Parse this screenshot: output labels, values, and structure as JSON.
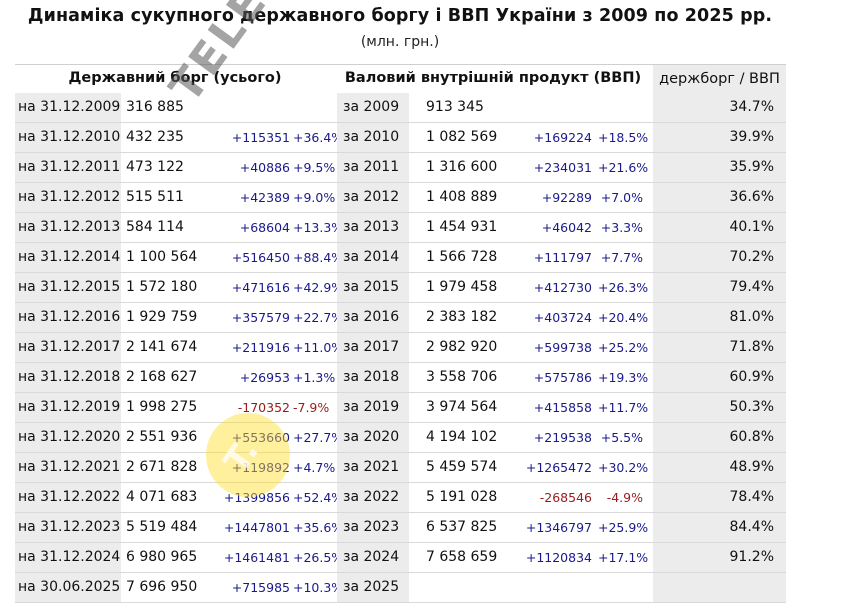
{
  "title": "Динаміка сукупного державного боргу і ВВП України з 2009 по 2025 рр.",
  "subtitle": "(млн. грн.)",
  "headers": {
    "debt": "Державний борг (усього)",
    "gdp": "Валовий внутрішній продукт (ВВП)",
    "ratio": "держборг / ВВП"
  },
  "watermark": {
    "text": "TELEGRAF",
    "logo": "T."
  },
  "rows": [
    {
      "date": "на 31.12.2009",
      "debt": "316 885",
      "debt_abs": "",
      "debt_pct": "",
      "year": "за 2009",
      "gdp": "913 345",
      "gdp_abs": "",
      "gdp_pct": "",
      "ratio": "34.7%"
    },
    {
      "date": "на 31.12.2010",
      "debt": "432 235",
      "debt_abs": "+115351",
      "debt_pct": "+36.4%",
      "year": "за 2010",
      "gdp": "1 082 569",
      "gdp_abs": "+169224",
      "gdp_pct": "+18.5%",
      "ratio": "39.9%"
    },
    {
      "date": "на 31.12.2011",
      "debt": "473 122",
      "debt_abs": "+40886",
      "debt_pct": "+9.5%",
      "year": "за 2011",
      "gdp": "1 316 600",
      "gdp_abs": "+234031",
      "gdp_pct": "+21.6%",
      "ratio": "35.9%"
    },
    {
      "date": "на 31.12.2012",
      "debt": "515 511",
      "debt_abs": "+42389",
      "debt_pct": "+9.0%",
      "year": "за 2012",
      "gdp": "1 408 889",
      "gdp_abs": "+92289",
      "gdp_pct": "+7.0%",
      "ratio": "36.6%"
    },
    {
      "date": "на 31.12.2013",
      "debt": "584 114",
      "debt_abs": "+68604",
      "debt_pct": "+13.3%",
      "year": "за 2013",
      "gdp": "1 454 931",
      "gdp_abs": "+46042",
      "gdp_pct": "+3.3%",
      "ratio": "40.1%"
    },
    {
      "date": "на 31.12.2014",
      "debt": "1 100 564",
      "debt_abs": "+516450",
      "debt_pct": "+88.4%",
      "year": "за 2014",
      "gdp": "1 566 728",
      "gdp_abs": "+111797",
      "gdp_pct": "+7.7%",
      "ratio": "70.2%"
    },
    {
      "date": "на 31.12.2015",
      "debt": "1 572 180",
      "debt_abs": "+471616",
      "debt_pct": "+42.9%",
      "year": "за 2015",
      "gdp": "1 979 458",
      "gdp_abs": "+412730",
      "gdp_pct": "+26.3%",
      "ratio": "79.4%"
    },
    {
      "date": "на 31.12.2016",
      "debt": "1 929 759",
      "debt_abs": "+357579",
      "debt_pct": "+22.7%",
      "year": "за 2016",
      "gdp": "2 383 182",
      "gdp_abs": "+403724",
      "gdp_pct": "+20.4%",
      "ratio": "81.0%"
    },
    {
      "date": "на 31.12.2017",
      "debt": "2 141 674",
      "debt_abs": "+211916",
      "debt_pct": "+11.0%",
      "year": "за 2017",
      "gdp": "2 982 920",
      "gdp_abs": "+599738",
      "gdp_pct": "+25.2%",
      "ratio": "71.8%"
    },
    {
      "date": "на 31.12.2018",
      "debt": "2 168 627",
      "debt_abs": "+26953",
      "debt_pct": "+1.3%",
      "year": "за 2018",
      "gdp": "3 558 706",
      "gdp_abs": "+575786",
      "gdp_pct": "+19.3%",
      "ratio": "60.9%"
    },
    {
      "date": "на 31.12.2019",
      "debt": "1 998 275",
      "debt_abs": "-170352",
      "debt_pct": "-7.9%",
      "debt_neg": true,
      "year": "за 2019",
      "gdp": "3 974 564",
      "gdp_abs": "+415858",
      "gdp_pct": "+11.7%",
      "ratio": "50.3%"
    },
    {
      "date": "на 31.12.2020",
      "debt": "2 551 936",
      "debt_abs": "+553660",
      "debt_pct": "+27.7%",
      "year": "за 2020",
      "gdp": "4 194 102",
      "gdp_abs": "+219538",
      "gdp_pct": "+5.5%",
      "ratio": "60.8%"
    },
    {
      "date": "на 31.12.2021",
      "debt": "2 671 828",
      "debt_abs": "+119892",
      "debt_pct": "+4.7%",
      "year": "за 2021",
      "gdp": "5 459 574",
      "gdp_abs": "+1265472",
      "gdp_pct": "+30.2%",
      "ratio": "48.9%"
    },
    {
      "date": "на 31.12.2022",
      "debt": "4 071 683",
      "debt_abs": "+1399856",
      "debt_pct": "+52.4%",
      "year": "за 2022",
      "gdp": "5 191 028",
      "gdp_abs": "-268546",
      "gdp_pct": "-4.9%",
      "gdp_neg": true,
      "ratio": "78.4%"
    },
    {
      "date": "на 31.12.2023",
      "debt": "5 519 484",
      "debt_abs": "+1447801",
      "debt_pct": "+35.6%",
      "year": "за 2023",
      "gdp": "6 537 825",
      "gdp_abs": "+1346797",
      "gdp_pct": "+25.9%",
      "ratio": "84.4%"
    },
    {
      "date": "на 31.12.2024",
      "debt": "6 980 965",
      "debt_abs": "+1461481",
      "debt_pct": "+26.5%",
      "year": "за 2024",
      "gdp": "7 658 659",
      "gdp_abs": "+1120834",
      "gdp_pct": "+17.1%",
      "ratio": "91.2%"
    },
    {
      "date": "на 30.06.2025",
      "debt": "7 696 950",
      "debt_abs": "+715985",
      "debt_pct": "+10.3%",
      "year": "за 2025",
      "gdp": "",
      "gdp_abs": "",
      "gdp_pct": "",
      "ratio": ""
    }
  ]
}
